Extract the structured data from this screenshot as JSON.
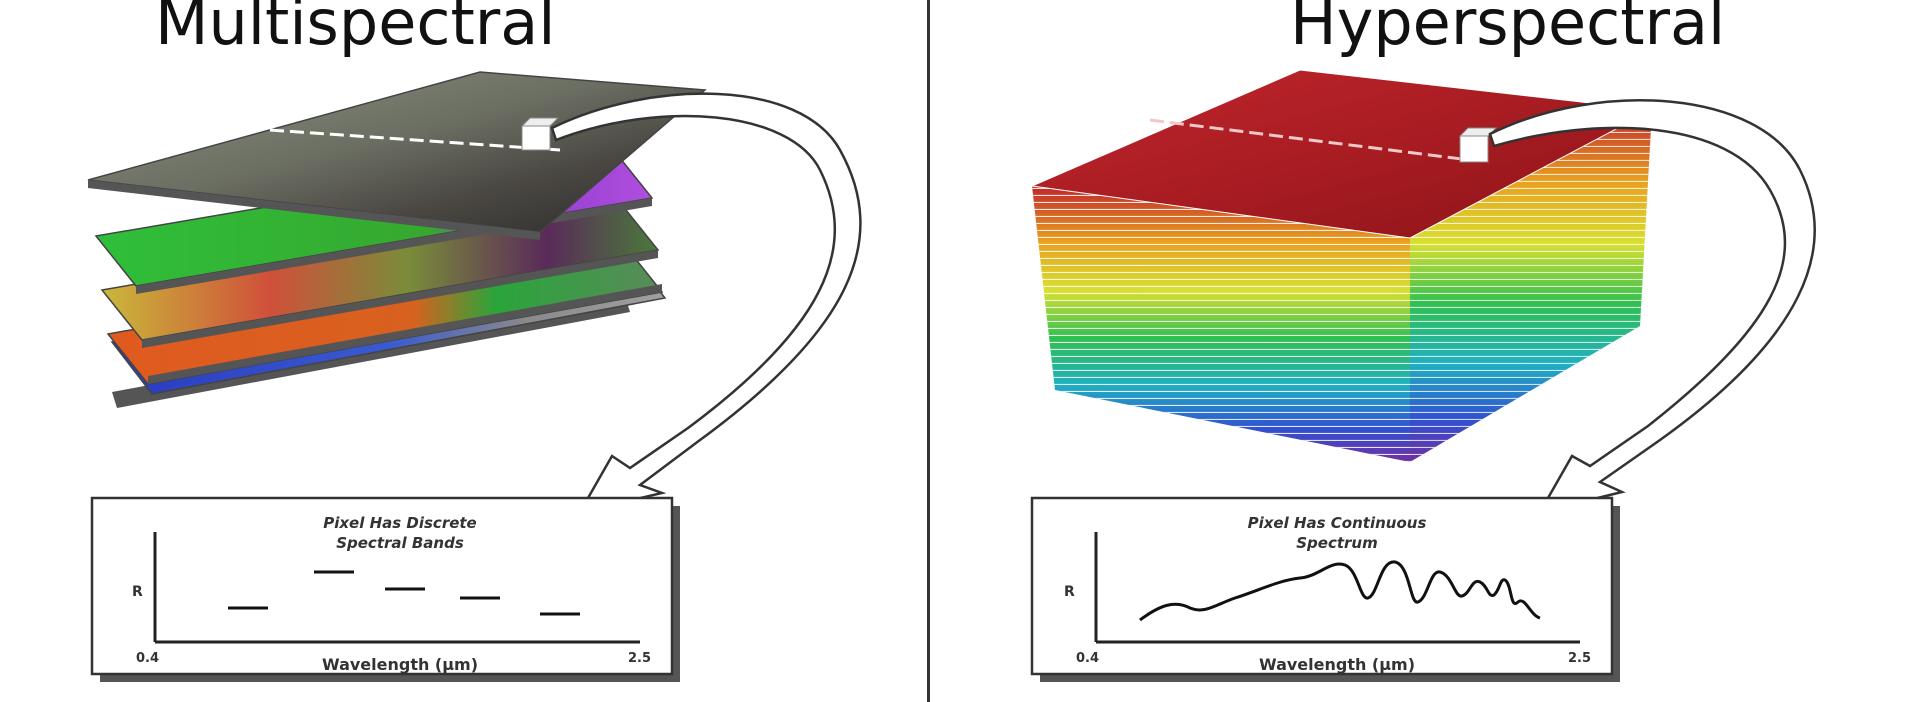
{
  "left": {
    "title": "Multispectral",
    "graph_title_1": "Pixel Has Discrete",
    "graph_title_2": "Spectral Bands",
    "y_label": "R",
    "x_label": "Wavelength (μm)",
    "x_min": "0.4",
    "x_max": "2.5"
  },
  "right": {
    "title": "Hyperspectral",
    "graph_title_1": "Pixel Has Continuous",
    "graph_title_2": "Spectrum",
    "y_label": "R",
    "x_label": "Wavelength (μm)",
    "x_min": "0.4",
    "x_max": "2.5"
  },
  "colors": {
    "hyper_top": "#b01c24",
    "divider": "#333333"
  }
}
